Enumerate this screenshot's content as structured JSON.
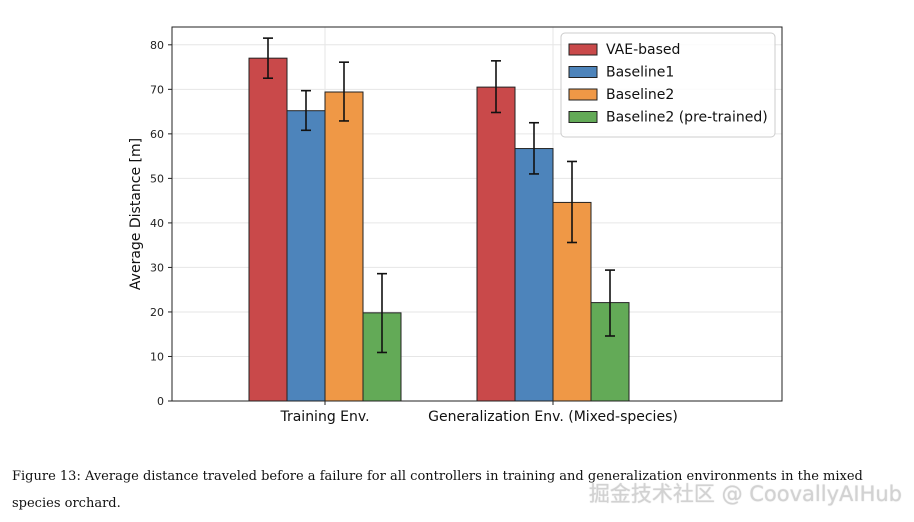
{
  "chart_data": {
    "type": "bar",
    "categories": [
      "Training Env.",
      "Generalization Env. (Mixed-species)"
    ],
    "ylabel": "Average Distance [m]",
    "xlabel": "",
    "ylim": [
      0,
      84
    ],
    "yticks": [
      0,
      10,
      20,
      30,
      40,
      50,
      60,
      70,
      80
    ],
    "grid": true,
    "legend_position": "top-right",
    "series": [
      {
        "name": "VAE-based",
        "color": "#c9494a",
        "values": [
          77,
          70.5
        ],
        "err_low": [
          72.5,
          64.8
        ],
        "err_high": [
          81.5,
          76.4
        ]
      },
      {
        "name": "Baseline1",
        "color": "#4d84bb",
        "values": [
          65.2,
          56.7
        ],
        "err_low": [
          60.8,
          51
        ],
        "err_high": [
          69.7,
          62.5
        ]
      },
      {
        "name": "Baseline2",
        "color": "#ef9846",
        "values": [
          69.4,
          44.6
        ],
        "err_low": [
          62.9,
          35.6
        ],
        "err_high": [
          76.1,
          53.8
        ]
      },
      {
        "name": "Baseline2 (pre-trained)",
        "color": "#63aa57",
        "values": [
          19.8,
          22.1
        ],
        "err_low": [
          10.9,
          14.6
        ],
        "err_high": [
          28.6,
          29.4
        ]
      }
    ]
  },
  "caption": "Figure 13: Average distance traveled before a failure for all controllers in training and generalization environments in the mixed species orchard.",
  "watermark": "掘金技术社区 @ CoovallyAIHub"
}
